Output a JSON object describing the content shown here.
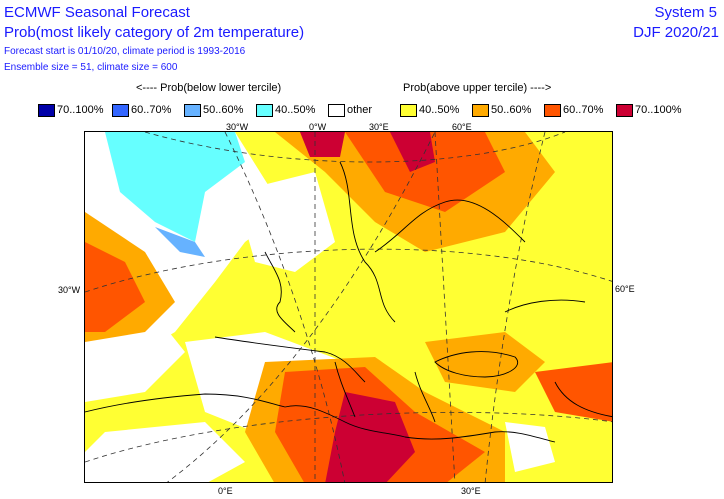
{
  "header": {
    "title": "ECMWF Seasonal Forecast",
    "subtitle": "Prob(most likely category of 2m temperature)",
    "forecast_info": "Forecast start is 01/10/20, climate period is 1993-2016",
    "ensemble_info": "Ensemble size = 51, climate size = 600",
    "system": "System 5",
    "season": "DJF 2020/21"
  },
  "legend": {
    "left_heading": "<---- Prob(below lower tercile)",
    "right_heading": "Prob(above upper tercile) ---->",
    "items": [
      {
        "label": "70..100%",
        "color": "#0000a8"
      },
      {
        "label": "60..70%",
        "color": "#3366ff"
      },
      {
        "label": "50..60%",
        "color": "#66b2ff"
      },
      {
        "label": "40..50%",
        "color": "#66ffff"
      },
      {
        "label": "other",
        "color": "#ffffff"
      },
      {
        "label": "40..50%",
        "color": "#ffff33"
      },
      {
        "label": "50..60%",
        "color": "#ffaa00"
      },
      {
        "label": "60..70%",
        "color": "#ff5500"
      },
      {
        "label": "70..100%",
        "color": "#cc0033"
      }
    ]
  },
  "map": {
    "top_ticks": [
      "30°W",
      "0°W",
      "30°E",
      "60°E"
    ],
    "bottom_ticks": [
      "0°E",
      "30°E"
    ],
    "left_tick": "30°W",
    "right_tick": "60°E"
  }
}
